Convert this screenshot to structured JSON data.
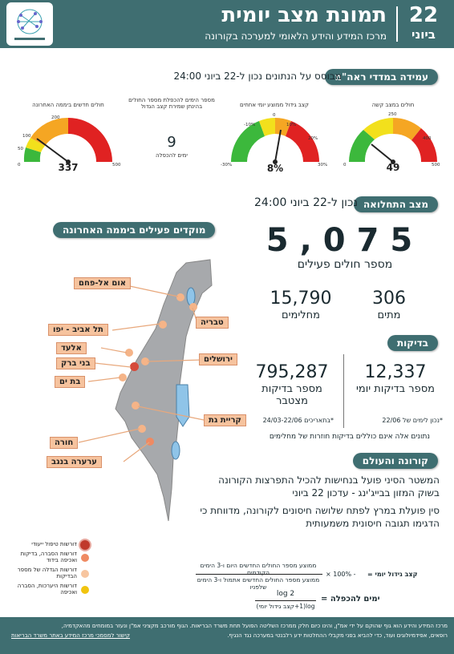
{
  "header": {
    "date_day": "22",
    "date_month": "ביוני",
    "title": "תמונת מצב יומית",
    "subtitle": "מרכז המידע והידע הלאומי למערכה בקורונה"
  },
  "indicators": {
    "pill": "עמידה במדדי ראה\"מ",
    "asof": "מבוסס על הנתונים נכון ל-22 ביוני 24:00",
    "gauges": [
      {
        "label": "חולים במצב קשה",
        "value": "49",
        "ticks": [
          "0",
          "250",
          "400",
          "500"
        ]
      },
      {
        "label": "קצב גידול ממוצע יומי אחחים",
        "value": "8%",
        "ticks": [
          "-30%",
          "-10%",
          "0",
          "10%",
          "20%",
          "30%"
        ]
      },
      {
        "label": "מספר הימים להכפלת מספר החולים בהינתן שמירת קצב הגדול",
        "value": "9",
        "sub": "ימים להכפלה"
      },
      {
        "label": "חולים חדשים ביממה האחרונה",
        "value": "337",
        "ticks": [
          "0",
          "50",
          "100",
          "200",
          "500"
        ]
      }
    ]
  },
  "status": {
    "pill": "מצב התחלואה",
    "asof": "נכון ל-22 ביוני 24:00",
    "active_value": "5,075",
    "active_label": "מספר חולים פעילים",
    "deaths_value": "306",
    "deaths_label": "מתים",
    "recovered_value": "15,790",
    "recovered_label": "מחלימים"
  },
  "tests": {
    "pill": "בדיקות",
    "daily_value": "12,337",
    "daily_label": "מספר בדיקות יומי",
    "daily_note": "*נכון לימים של 22/06",
    "total_value": "795,287",
    "total_label": "מספר בדיקות מצטבר",
    "total_note": "*בתאריכים 24/03-22/06",
    "footnote": "נתונים אלה אינם כוללים בדיקות חוזרות של מחלימים"
  },
  "world": {
    "pill": "קורונה והעולם",
    "para1": "המשטר הסיני פועל בנחישות להכיל התפרצות הקורונה בשוק המזון בבייג'ינג - עדכון 22 ביוני",
    "para2": "סין פועלת במרץ לפתח שלושה חיסונים לקורונה, מדווחת כי הדגימו תגובה חיסונית משמעותית"
  },
  "map": {
    "pill": "מוקדים פעילים ביממה האחרונה",
    "cities": [
      "אום אל-פחם",
      "טבריה",
      "תל אביב - יפו",
      "אלעד",
      "ירושלים",
      "בני ברק",
      "בת ים",
      "קריית גת",
      "חורה",
      "ערערה בנגב"
    ],
    "legend": [
      {
        "label": "דורשות טיפול ייעודי",
        "color": "#c0392b"
      },
      {
        "label": "דורשות הסברה, בדיקות ואכיפה בידוד",
        "color": "#ef8a62"
      },
      {
        "label": "דורשות הגדלה של מספר הבדיקות",
        "color": "#f7c59f"
      },
      {
        "label": "דורשות היערכות, הסברה ואכיפה",
        "color": "#f1c40f"
      }
    ]
  },
  "formula": {
    "rate_label": "קצב גידול יומי =",
    "rate_num": "ממוצע מספר החולים החדשים היום ו-3 הימים הקודמים",
    "rate_den": "ממוצע מספר החולים החדשים אתמול ו-3 הימים שלפניו",
    "rate_suffix": "- 100% ×",
    "double_label": "ימים להכפלה =",
    "double_num": "log 2",
    "double_den": "log(1+קצב גידול יומי)"
  },
  "footer": {
    "line1": "מרכז המידע והידע הוא גוף שהוקם על ידי אמ\"ן, והינו כיום חלק ממרכז השליטה הפועל תחת משרד הבריאות. הגוף מורכב מקציני אמ\"ן ונעזר במומחים מהאקדמיה,",
    "line2": "רופאים, אפידמיולוגים ועוד, כדי להביא בפני מקבלי ההחלטות ידע רלבנטי במערכה נגד הנגיף.",
    "link": "קישור למסמכי מרכז המידע באתר משרד הבריאות"
  },
  "colors": {
    "brand": "#3f6e71",
    "green": "#3cb83c",
    "yellow": "#f2e01c",
    "orange": "#f5a623",
    "red": "#e02222"
  }
}
